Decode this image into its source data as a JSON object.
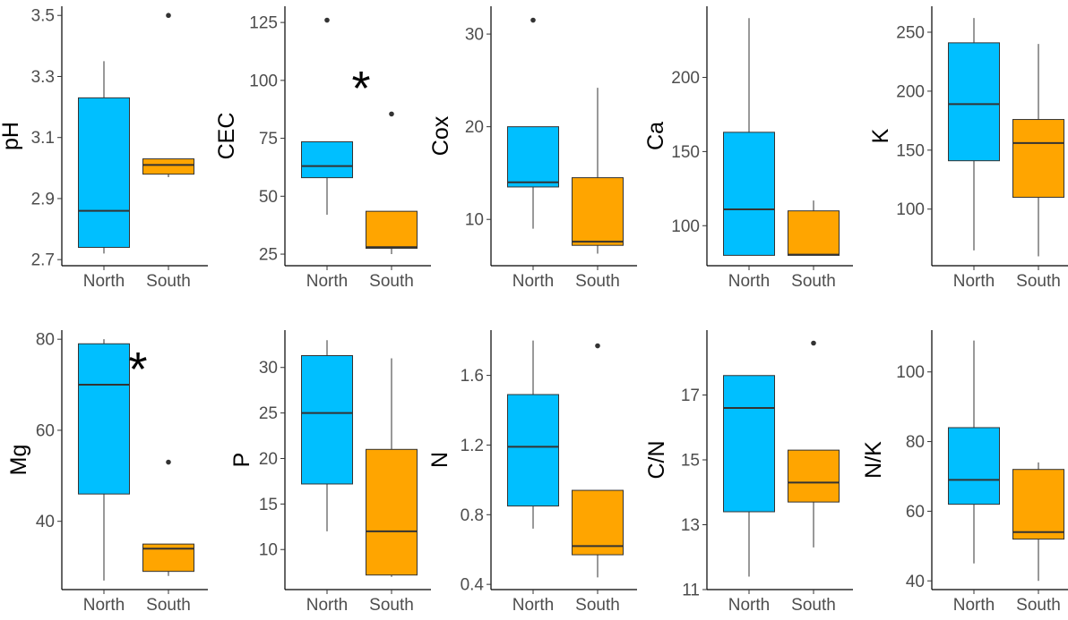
{
  "colors": {
    "north": "#00BFFF",
    "south": "#FFA500",
    "outline": "#333333"
  },
  "chart_data": [
    {
      "type": "box",
      "ylabel": "pH",
      "categories": [
        "North",
        "South"
      ],
      "ylim": [
        2.68,
        3.53
      ],
      "ticks": [
        2.7,
        2.9,
        3.1,
        3.3,
        3.5
      ],
      "tick_labels": [
        "2.7",
        "2.9",
        "3.1",
        "3.3",
        "3.5"
      ],
      "boxes": [
        {
          "name": "North",
          "min": 2.72,
          "q1": 2.74,
          "median": 2.86,
          "q3": 3.23,
          "max": 3.35,
          "outliers": []
        },
        {
          "name": "South",
          "min": 2.97,
          "q1": 2.98,
          "median": 3.01,
          "q3": 3.03,
          "max": 3.03,
          "outliers": [
            3.5
          ]
        }
      ],
      "annotation": ""
    },
    {
      "type": "box",
      "ylabel": "CEC",
      "categories": [
        "North",
        "South"
      ],
      "ylim": [
        20,
        132
      ],
      "ticks": [
        25,
        50,
        75,
        100,
        125
      ],
      "tick_labels": [
        "25",
        "50",
        "75",
        "100",
        "125"
      ],
      "boxes": [
        {
          "name": "North",
          "min": 42,
          "q1": 58,
          "median": 63,
          "q3": 73.5,
          "max": 73.5,
          "outliers": [
            126
          ]
        },
        {
          "name": "South",
          "min": 25,
          "q1": 27.5,
          "median": 28,
          "q3": 43.5,
          "max": 43.5,
          "outliers": [
            85.5
          ]
        }
      ],
      "annotation": "*"
    },
    {
      "type": "box",
      "ylabel": "Cox",
      "categories": [
        "North",
        "South"
      ],
      "ylim": [
        5,
        33
      ],
      "ticks": [
        10,
        20,
        30
      ],
      "tick_labels": [
        "10",
        "20",
        "30"
      ],
      "boxes": [
        {
          "name": "North",
          "min": 9,
          "q1": 13.5,
          "median": 14,
          "q3": 20,
          "max": 20,
          "outliers": [
            31.5
          ]
        },
        {
          "name": "South",
          "min": 6.3,
          "q1": 7.2,
          "median": 7.6,
          "q3": 14.5,
          "max": 24.2,
          "outliers": []
        }
      ],
      "annotation": ""
    },
    {
      "type": "box",
      "ylabel": "Ca",
      "categories": [
        "North",
        "South"
      ],
      "ylim": [
        73,
        248
      ],
      "ticks": [
        100,
        150,
        200
      ],
      "tick_labels": [
        "100",
        "150",
        "200"
      ],
      "boxes": [
        {
          "name": "North",
          "min": 80,
          "q1": 80,
          "median": 111,
          "q3": 163,
          "max": 240,
          "outliers": []
        },
        {
          "name": "South",
          "min": 80,
          "q1": 80,
          "median": 80.5,
          "q3": 110,
          "max": 117,
          "outliers": []
        }
      ],
      "annotation": ""
    },
    {
      "type": "box",
      "ylabel": "K",
      "categories": [
        "North",
        "South"
      ],
      "ylim": [
        52,
        272
      ],
      "ticks": [
        100,
        150,
        200,
        250
      ],
      "tick_labels": [
        "100",
        "150",
        "200",
        "250"
      ],
      "boxes": [
        {
          "name": "North",
          "min": 65,
          "q1": 141,
          "median": 189,
          "q3": 241,
          "max": 262,
          "outliers": []
        },
        {
          "name": "South",
          "min": 60,
          "q1": 110,
          "median": 156,
          "q3": 176,
          "max": 240,
          "outliers": []
        }
      ],
      "annotation": ""
    },
    {
      "type": "box",
      "ylabel": "Mg",
      "categories": [
        "North",
        "South"
      ],
      "ylim": [
        25,
        82
      ],
      "ticks": [
        40,
        60,
        80
      ],
      "tick_labels": [
        "40",
        "60",
        "80"
      ],
      "boxes": [
        {
          "name": "North",
          "min": 27,
          "q1": 46,
          "median": 70,
          "q3": 79,
          "max": 80,
          "outliers": []
        },
        {
          "name": "South",
          "min": 28,
          "q1": 29,
          "median": 34,
          "q3": 35,
          "max": 35,
          "outliers": [
            53
          ]
        }
      ],
      "annotation": "*"
    },
    {
      "type": "box",
      "ylabel": "P",
      "categories": [
        "North",
        "South"
      ],
      "ylim": [
        5.6,
        34.1
      ],
      "ticks": [
        10,
        15,
        20,
        25,
        30
      ],
      "tick_labels": [
        "10",
        "15",
        "20",
        "25",
        "30"
      ],
      "boxes": [
        {
          "name": "North",
          "min": 12,
          "q1": 17.2,
          "median": 25,
          "q3": 31.3,
          "max": 33,
          "outliers": []
        },
        {
          "name": "South",
          "min": 7,
          "q1": 7.2,
          "median": 12,
          "q3": 21,
          "max": 31,
          "outliers": []
        }
      ],
      "annotation": ""
    },
    {
      "type": "box",
      "ylabel": "N",
      "categories": [
        "North",
        "South"
      ],
      "ylim": [
        0.37,
        1.86
      ],
      "ticks": [
        0.4,
        0.8,
        1.2,
        1.6
      ],
      "tick_labels": [
        "0.4",
        "0.8",
        "1.2",
        "1.6"
      ],
      "boxes": [
        {
          "name": "North",
          "min": 0.72,
          "q1": 0.85,
          "median": 1.19,
          "q3": 1.49,
          "max": 1.8,
          "outliers": []
        },
        {
          "name": "South",
          "min": 0.44,
          "q1": 0.57,
          "median": 0.62,
          "q3": 0.94,
          "max": 0.94,
          "outliers": [
            1.77
          ]
        }
      ],
      "annotation": ""
    },
    {
      "type": "box",
      "ylabel": "C/N",
      "categories": [
        "North",
        "South"
      ],
      "ylim": [
        11,
        19
      ],
      "ticks": [
        11,
        13,
        15,
        17
      ],
      "tick_labels": [
        "11",
        "13",
        "15",
        "17"
      ],
      "boxes": [
        {
          "name": "North",
          "min": 11.4,
          "q1": 13.4,
          "median": 16.6,
          "q3": 17.6,
          "max": 17.6,
          "outliers": []
        },
        {
          "name": "South",
          "min": 12.3,
          "q1": 13.7,
          "median": 14.3,
          "q3": 15.3,
          "max": 15.3,
          "outliers": [
            18.6
          ]
        }
      ],
      "annotation": ""
    },
    {
      "type": "box",
      "ylabel": "N/K",
      "categories": [
        "North",
        "South"
      ],
      "ylim": [
        37.5,
        112
      ],
      "ticks": [
        40,
        60,
        80,
        100
      ],
      "tick_labels": [
        "40",
        "60",
        "80",
        "100"
      ],
      "boxes": [
        {
          "name": "North",
          "min": 45,
          "q1": 62,
          "median": 69,
          "q3": 84,
          "max": 109,
          "outliers": []
        },
        {
          "name": "South",
          "min": 40,
          "q1": 52,
          "median": 54,
          "q3": 72,
          "max": 74,
          "outliers": []
        }
      ],
      "annotation": ""
    }
  ]
}
